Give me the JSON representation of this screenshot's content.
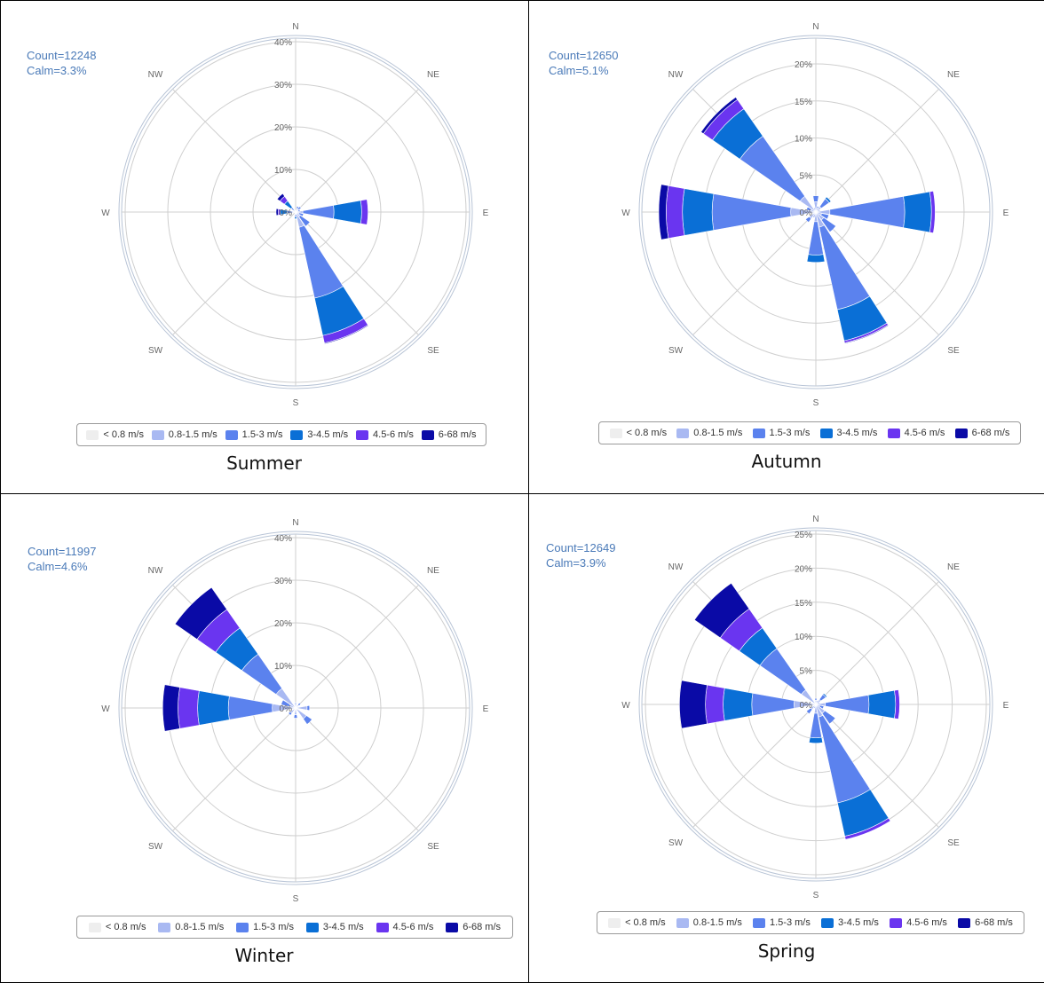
{
  "legend": [
    {
      "label": "< 0.8 m/s",
      "color": "#eeeeee"
    },
    {
      "label": "0.8-1.5 m/s",
      "color": "#a9b9f2"
    },
    {
      "label": "1.5-3 m/s",
      "color": "#5b82ee"
    },
    {
      "label": "3-4.5 m/s",
      "color": "#0a6fd6"
    },
    {
      "label": "4.5-6 m/s",
      "color": "#6a35f0"
    },
    {
      "label": "6-68 m/s",
      "color": "#0a0aa6"
    }
  ],
  "directions": [
    "N",
    "NE",
    "E",
    "SE",
    "S",
    "SW",
    "W",
    "NW"
  ],
  "chart_data": [
    {
      "type": "windrose",
      "caption": "Summer",
      "count_label": "Count=12248",
      "calm_label": "Calm=3.3%",
      "radial_ticks": [
        "0%",
        "10%",
        "20%",
        "30%",
        "40%"
      ],
      "tick_values": [
        0,
        10,
        20,
        30,
        40
      ],
      "rmax": 40,
      "series": [
        {
          "name": "< 0.8 m/s",
          "values": [
            0.1,
            0.1,
            0.1,
            0.1,
            0.1,
            0.1,
            0.1,
            0.1,
            0.1,
            0.1,
            0.1,
            0.1,
            0.1,
            0.1,
            0.1,
            0.1
          ]
        },
        {
          "name": "0.8-1.5 m/s",
          "values": [
            0.3,
            0.8,
            0.7,
            0.5,
            1.6,
            0.7,
            1.2,
            3.6,
            0.4,
            0.3,
            0.2,
            0.2,
            0.6,
            0.2,
            0.2,
            0.3
          ]
        },
        {
          "name": "1.5-3 m/s",
          "values": [
            0,
            0.5,
            0.8,
            0.5,
            7.3,
            1.1,
            2.8,
            17.0,
            0.6,
            0,
            0,
            0,
            1.3,
            0.2,
            1.0,
            0
          ]
        },
        {
          "name": "3-4.5 m/s",
          "values": [
            0,
            0,
            0,
            0,
            6.5,
            0,
            0,
            9.0,
            0.5,
            0,
            0,
            0,
            1.6,
            0,
            1.9,
            0
          ]
        },
        {
          "name": "4.5-6 m/s",
          "values": [
            0,
            0,
            0,
            0,
            1.5,
            0,
            0,
            1.8,
            0.1,
            0,
            0,
            0,
            0.5,
            0,
            1.3,
            0
          ]
        },
        {
          "name": "6-68 m/s",
          "values": [
            0,
            0,
            0,
            0,
            0,
            0,
            0,
            0.2,
            0,
            0,
            0,
            0,
            0.5,
            0,
            0.8,
            0
          ]
        }
      ]
    },
    {
      "type": "windrose",
      "caption": "Autumn",
      "count_label": "Count=12650",
      "calm_label": "Calm=5.1%",
      "radial_ticks": [
        "0%",
        "5%",
        "10%",
        "15%",
        "20%"
      ],
      "tick_values": [
        0,
        5,
        10,
        15,
        20
      ],
      "rmax": 23,
      "series": [
        {
          "name": "< 0.8 m/s",
          "values": [
            0.1,
            0.1,
            0.1,
            0.1,
            0.1,
            0.1,
            0.1,
            0.1,
            0.1,
            0.1,
            0.1,
            0.1,
            0.1,
            0.1,
            0.1,
            0.1
          ]
        },
        {
          "name": "0.8-1.5 m/s",
          "values": [
            1.3,
            0.5,
            0.8,
            0.5,
            1.8,
            0.7,
            1.2,
            2.0,
            1.2,
            0.7,
            1.0,
            0.3,
            3.3,
            0.6,
            2.5,
            0.5
          ]
        },
        {
          "name": "1.5-3 m/s",
          "values": [
            0.8,
            0.2,
            1.3,
            0,
            10.1,
            1.0,
            2.0,
            11.4,
            4.5,
            0,
            0.6,
            0,
            10.6,
            0.6,
            9.9,
            0
          ]
        },
        {
          "name": "3-4.5 m/s",
          "values": [
            0,
            0,
            0.3,
            0,
            3.6,
            0,
            0,
            4.3,
            1.0,
            0,
            0,
            0,
            4.0,
            0,
            4.5,
            0
          ]
        },
        {
          "name": "4.5-6 m/s",
          "values": [
            0,
            0,
            0,
            0,
            0.5,
            0,
            0,
            0.3,
            0,
            0,
            0,
            0,
            2.2,
            0,
            1.5,
            0
          ]
        },
        {
          "name": "6-68 m/s",
          "values": [
            0,
            0,
            0,
            0,
            0,
            0,
            0,
            0.1,
            0,
            0,
            0,
            0,
            1.0,
            0,
            0.4,
            0
          ]
        }
      ]
    },
    {
      "type": "windrose",
      "caption": "Winter",
      "count_label": "Count=11997",
      "calm_label": "Calm=4.6%",
      "radial_ticks": [
        "0%",
        "10%",
        "20%",
        "30%",
        "40%"
      ],
      "tick_values": [
        0,
        10,
        20,
        30,
        40
      ],
      "rmax": 40,
      "series": [
        {
          "name": "< 0.8 m/s",
          "values": [
            0.1,
            0.1,
            0.1,
            0.1,
            0.1,
            0.1,
            0.1,
            0.1,
            0.1,
            0.1,
            0.1,
            0.1,
            0.1,
            0.1,
            0.1,
            0.1
          ]
        },
        {
          "name": "0.8-1.5 m/s",
          "values": [
            1.0,
            0.5,
            0.8,
            0.5,
            2.6,
            0.4,
            3.0,
            0.6,
            1.5,
            0.5,
            1.4,
            0.5,
            5.4,
            1.4,
            5.5,
            0.5
          ]
        },
        {
          "name": "1.5-3 m/s",
          "values": [
            0.2,
            0,
            0.6,
            0,
            0.6,
            0,
            1.6,
            0,
            0.8,
            0,
            0.6,
            0,
            10.3,
            2.0,
            9.8,
            0
          ]
        },
        {
          "name": "3-4.5 m/s",
          "values": [
            0,
            0,
            0,
            0,
            0,
            0,
            0,
            0,
            0,
            0,
            0,
            0,
            7.2,
            0,
            7.5,
            0
          ]
        },
        {
          "name": "4.5-6 m/s",
          "values": [
            0,
            0,
            0,
            0,
            0,
            0,
            0,
            0,
            0,
            0,
            0,
            0,
            4.6,
            0,
            5.3,
            0
          ]
        },
        {
          "name": "6-68 m/s",
          "values": [
            0,
            0,
            0,
            0,
            0,
            0,
            0,
            0,
            0,
            0,
            0,
            0,
            3.6,
            0,
            6.3,
            0
          ]
        }
      ]
    },
    {
      "type": "windrose",
      "caption": "Spring",
      "count_label": "Count=12649",
      "calm_label": "Calm=3.9%",
      "radial_ticks": [
        "0%",
        "5%",
        "10%",
        "15%",
        "20%",
        "25%"
      ],
      "tick_values": [
        0,
        5,
        10,
        15,
        20,
        25
      ],
      "rmax": 25,
      "series": [
        {
          "name": "< 0.8 m/s",
          "values": [
            0.1,
            0.1,
            0.1,
            0.1,
            0.1,
            0.1,
            0.1,
            0.1,
            0.1,
            0.1,
            0.1,
            0.1,
            0.1,
            0.1,
            0.1,
            0.1
          ]
        },
        {
          "name": "0.8-1.5 m/s",
          "values": [
            0.5,
            0.5,
            0.8,
            0.5,
            1.3,
            0.5,
            1.5,
            1.8,
            1.2,
            0.5,
            0.8,
            0.3,
            3.1,
            0.3,
            2.5,
            0.3
          ]
        },
        {
          "name": "1.5-3 m/s",
          "values": [
            0.3,
            0,
            0.9,
            0,
            6.4,
            0.6,
            1.9,
            12.9,
            3.6,
            0,
            0.8,
            0,
            6.2,
            0,
            7.4,
            0
          ]
        },
        {
          "name": "3-4.5 m/s",
          "values": [
            0,
            0,
            0.2,
            0,
            3.9,
            0,
            0,
            5.0,
            0.8,
            0,
            0,
            0,
            4.2,
            0,
            3.7,
            0
          ]
        },
        {
          "name": "4.5-6 m/s",
          "values": [
            0,
            0,
            0,
            0,
            0.6,
            0,
            0,
            0.5,
            0,
            0,
            0,
            0,
            2.6,
            0,
            3.4,
            0
          ]
        },
        {
          "name": "6-68 m/s",
          "values": [
            0,
            0,
            0,
            0,
            0,
            0,
            0,
            0,
            0,
            0,
            0,
            0,
            3.8,
            0,
            4.6,
            0
          ]
        }
      ]
    }
  ]
}
